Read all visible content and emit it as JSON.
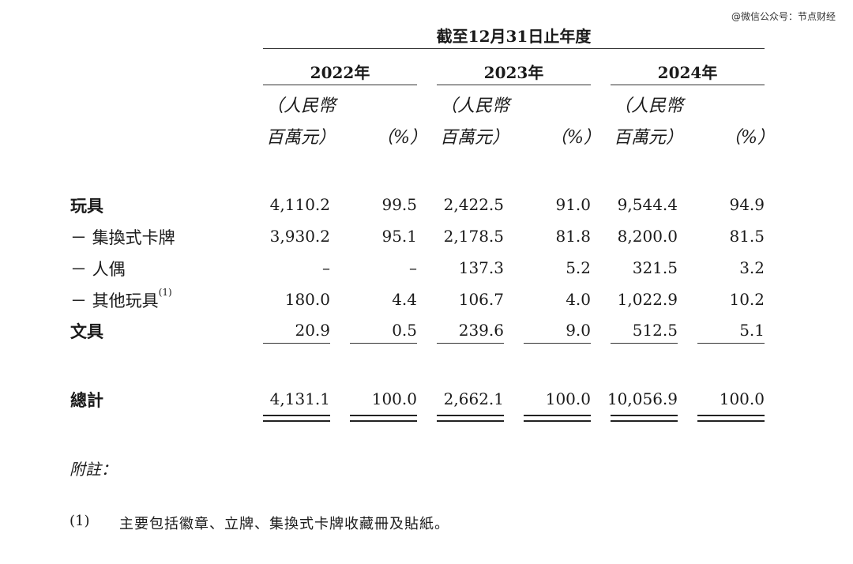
{
  "watermark": "@微信公众号：节点财经",
  "period_header": "截至12月31日止年度",
  "years": [
    "2022年",
    "2023年",
    "2024年"
  ],
  "unit": {
    "open_paren": "（",
    "currency_line1": "人民幣",
    "currency_line2": "百萬元）",
    "pct": "（%）"
  },
  "rows": [
    {
      "label": "玩具",
      "footnote": "",
      "bold": true,
      "values": [
        "4,110.2",
        "99.5",
        "2,422.5",
        "91.0",
        "9,544.4",
        "94.9"
      ]
    },
    {
      "label": "－ 集換式卡牌",
      "footnote": "",
      "bold": false,
      "values": [
        "3,930.2",
        "95.1",
        "2,178.5",
        "81.8",
        "8,200.0",
        "81.5"
      ]
    },
    {
      "label": "－ 人偶",
      "footnote": "",
      "bold": false,
      "values": [
        "–",
        "–",
        "137.3",
        "5.2",
        "321.5",
        "3.2"
      ]
    },
    {
      "label": "－ 其他玩具",
      "footnote": "(1)",
      "bold": false,
      "values": [
        "180.0",
        "4.4",
        "106.7",
        "4.0",
        "1,022.9",
        "10.2"
      ]
    },
    {
      "label": "文具",
      "footnote": "",
      "bold": true,
      "values": [
        "20.9",
        "0.5",
        "239.6",
        "9.0",
        "512.5",
        "5.1"
      ]
    }
  ],
  "total": {
    "label": "總計",
    "values": [
      "4,131.1",
      "100.0",
      "2,662.1",
      "100.0",
      "10,056.9",
      "100.0"
    ]
  },
  "notes": {
    "title": "附註：",
    "items": [
      {
        "marker": "(1)",
        "text": "主要包括徽章、立牌、集換式卡牌收藏冊及貼紙。"
      }
    ]
  }
}
